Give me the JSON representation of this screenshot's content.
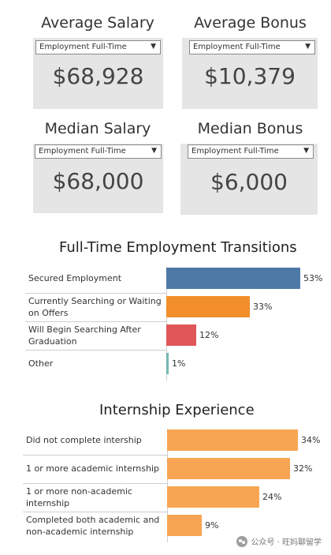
{
  "kpis": [
    {
      "title": "Average Salary",
      "filter": "Employment Full-Time",
      "value": "$68,928"
    },
    {
      "title": "Average Bonus",
      "filter": "Employment Full-Time",
      "value": "$10,379"
    },
    {
      "title": "Median Salary",
      "filter": "Employment Full-Time",
      "value": "$68,000"
    },
    {
      "title": "Median Bonus",
      "filter": "Employment Full-Time",
      "value": "$6,000"
    }
  ],
  "watermark": "公众号 · 旺妈聊留学",
  "chart_data": [
    {
      "type": "bar",
      "orientation": "horizontal",
      "title": "Full-Time Employment Transitions",
      "categories": [
        "Secured Employment",
        "Currently Searching or Waiting on Offers",
        " Will Begin Searching After Graduation",
        "Other"
      ],
      "values": [
        53,
        33,
        12,
        1
      ],
      "value_labels": [
        "53%",
        "33%",
        "12%",
        "1%"
      ],
      "colors": [
        "#4e79a7",
        "#f28e2b",
        "#e15759",
        "#76b7b2"
      ],
      "xlim": [
        0,
        53
      ]
    },
    {
      "type": "bar",
      "orientation": "horizontal",
      "title": "Internship Experience",
      "categories": [
        "Did not complete intership",
        "1 or more academic internship",
        "1 or more non-academic internship",
        "Completed both academic and non-academic internship"
      ],
      "values": [
        34,
        32,
        24,
        9
      ],
      "value_labels": [
        "34%",
        "32%",
        "24%",
        "9%"
      ],
      "colors": [
        "#f8a553",
        "#f8a553",
        "#f8a553",
        "#f8a553"
      ],
      "xlim": [
        0,
        34
      ]
    }
  ]
}
